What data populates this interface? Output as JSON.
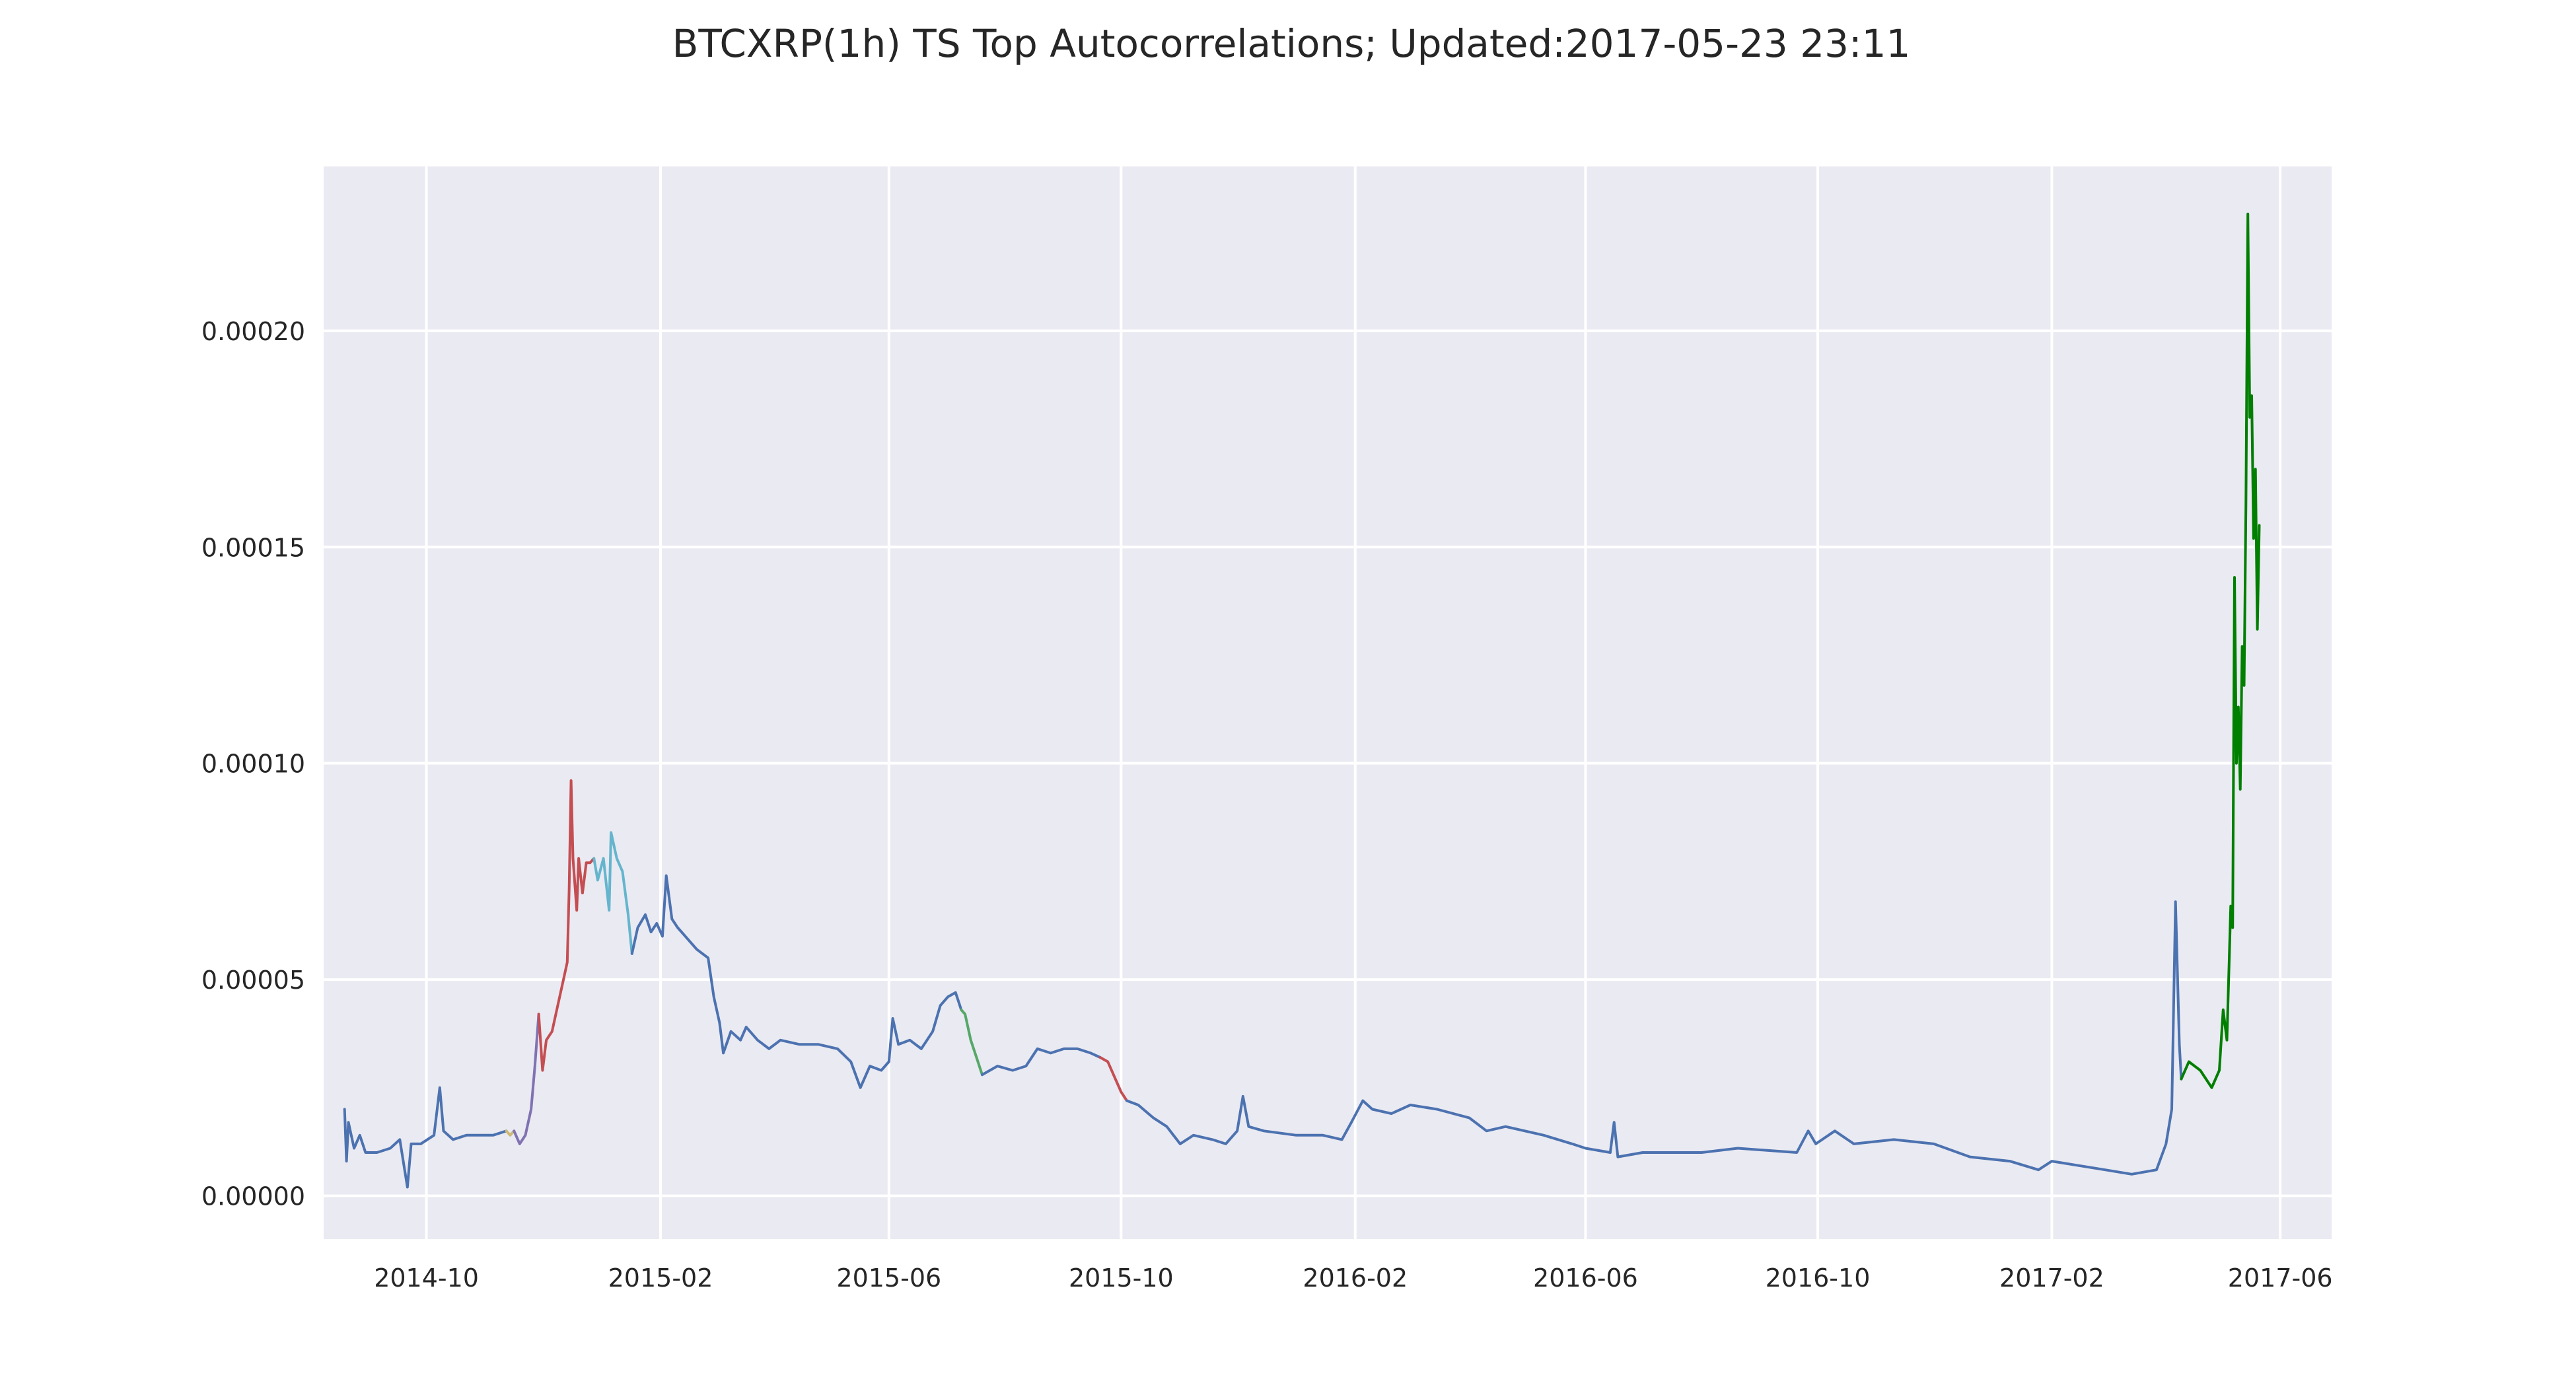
{
  "chart_data": {
    "type": "line",
    "title": "BTCXRP(1h) TS Top Autocorrelations;  Updated:2017-05-23 23:11",
    "xlabel": "",
    "ylabel": "",
    "x_axis": {
      "type": "date",
      "range": [
        "2014-08-08",
        "2017-06-28"
      ],
      "ticks": [
        "2014-10",
        "2015-02",
        "2015-06",
        "2015-10",
        "2016-02",
        "2016-06",
        "2016-10",
        "2017-02",
        "2017-06"
      ]
    },
    "y_axis": {
      "range": [
        -1e-05,
        0.000238
      ],
      "ticks": [
        "0.00000",
        "0.00005",
        "0.00010",
        "0.00015",
        "0.00020"
      ]
    },
    "grid": true,
    "legend": "none",
    "colors": {
      "background": "#EAEAF2",
      "grid": "#FFFFFF",
      "base": "#4C72B0",
      "red": "#C44E52",
      "cyan": "#64B5CD",
      "purple": "#8172B2",
      "green": "#55A868",
      "dark_green": "#007F00",
      "olive": "#CCB974"
    },
    "series": [
      {
        "color": "#4C72B0",
        "points": [
          [
            "2014-08-19",
            2e-05
          ],
          [
            "2014-08-20",
            8e-06
          ],
          [
            "2014-08-21",
            1.7e-05
          ],
          [
            "2014-08-24",
            1.1e-05
          ],
          [
            "2014-08-27",
            1.4e-05
          ],
          [
            "2014-08-30",
            1e-05
          ],
          [
            "2014-09-05",
            1e-05
          ],
          [
            "2014-09-12",
            1.1e-05
          ],
          [
            "2014-09-17",
            1.3e-05
          ],
          [
            "2014-09-21",
            2e-06
          ],
          [
            "2014-09-23",
            1.2e-05
          ],
          [
            "2014-09-28",
            1.2e-05
          ],
          [
            "2014-10-05",
            1.4e-05
          ],
          [
            "2014-10-08",
            2.5e-05
          ],
          [
            "2014-10-10",
            1.5e-05
          ],
          [
            "2014-10-15",
            1.3e-05
          ],
          [
            "2014-10-22",
            1.4e-05
          ],
          [
            "2014-10-29",
            1.4e-05
          ],
          [
            "2014-11-05",
            1.4e-05
          ],
          [
            "2014-11-12",
            1.5e-05
          ]
        ]
      },
      {
        "color": "#CCB974",
        "points": [
          [
            "2014-11-12",
            1.5e-05
          ],
          [
            "2014-11-14",
            1.4e-05
          ],
          [
            "2014-11-16",
            1.5e-05
          ]
        ]
      },
      {
        "color": "#8172B2",
        "points": [
          [
            "2014-11-16",
            1.5e-05
          ],
          [
            "2014-11-19",
            1.2e-05
          ],
          [
            "2014-11-22",
            1.4e-05
          ],
          [
            "2014-11-25",
            2e-05
          ],
          [
            "2014-11-27",
            3e-05
          ],
          [
            "2014-11-29",
            4.2e-05
          ]
        ]
      },
      {
        "color": "#C44E52",
        "points": [
          [
            "2014-11-29",
            4.2e-05
          ],
          [
            "2014-12-01",
            2.9e-05
          ],
          [
            "2014-12-03",
            3.6e-05
          ],
          [
            "2014-12-06",
            3.8e-05
          ],
          [
            "2014-12-09",
            4.4e-05
          ],
          [
            "2014-12-12",
            5e-05
          ],
          [
            "2014-12-14",
            5.4e-05
          ],
          [
            "2014-12-15",
            7.1e-05
          ],
          [
            "2014-12-16",
            9.6e-05
          ],
          [
            "2014-12-17",
            7.8e-05
          ],
          [
            "2014-12-19",
            6.6e-05
          ],
          [
            "2014-12-20",
            7.8e-05
          ],
          [
            "2014-12-22",
            7e-05
          ],
          [
            "2014-12-24",
            7.7e-05
          ],
          [
            "2014-12-26",
            7.7e-05
          ],
          [
            "2014-12-28",
            7.8e-05
          ]
        ]
      },
      {
        "color": "#64B5CD",
        "points": [
          [
            "2014-12-28",
            7.8e-05
          ],
          [
            "2014-12-30",
            7.3e-05
          ],
          [
            "2015-01-02",
            7.8e-05
          ],
          [
            "2015-01-05",
            6.6e-05
          ],
          [
            "2015-01-06",
            8.4e-05
          ],
          [
            "2015-01-09",
            7.8e-05
          ],
          [
            "2015-01-12",
            7.5e-05
          ],
          [
            "2015-01-15",
            6.5e-05
          ],
          [
            "2015-01-17",
            5.6e-05
          ]
        ]
      },
      {
        "color": "#4C72B0",
        "points": [
          [
            "2015-01-17",
            5.6e-05
          ],
          [
            "2015-01-20",
            6.2e-05
          ],
          [
            "2015-01-24",
            6.5e-05
          ],
          [
            "2015-01-27",
            6.1e-05
          ],
          [
            "2015-01-30",
            6.3e-05
          ],
          [
            "2015-02-02",
            6e-05
          ],
          [
            "2015-02-04",
            7.4e-05
          ],
          [
            "2015-02-07",
            6.4e-05
          ],
          [
            "2015-02-10",
            6.2e-05
          ],
          [
            "2015-02-14",
            6e-05
          ],
          [
            "2015-02-20",
            5.7e-05
          ],
          [
            "2015-02-26",
            5.5e-05
          ],
          [
            "2015-03-01",
            4.6e-05
          ],
          [
            "2015-03-04",
            4e-05
          ],
          [
            "2015-03-06",
            3.3e-05
          ],
          [
            "2015-03-10",
            3.8e-05
          ],
          [
            "2015-03-15",
            3.6e-05
          ],
          [
            "2015-03-18",
            3.9e-05
          ],
          [
            "2015-03-24",
            3.6e-05
          ],
          [
            "2015-03-30",
            3.4e-05
          ],
          [
            "2015-04-05",
            3.6e-05
          ],
          [
            "2015-04-15",
            3.5e-05
          ],
          [
            "2015-04-25",
            3.5e-05
          ],
          [
            "2015-05-05",
            3.4e-05
          ],
          [
            "2015-05-12",
            3.1e-05
          ],
          [
            "2015-05-17",
            2.5e-05
          ],
          [
            "2015-05-22",
            3e-05
          ],
          [
            "2015-05-28",
            2.9e-05
          ],
          [
            "2015-06-01",
            3.1e-05
          ],
          [
            "2015-06-03",
            4.1e-05
          ],
          [
            "2015-06-06",
            3.5e-05
          ],
          [
            "2015-06-12",
            3.6e-05
          ],
          [
            "2015-06-18",
            3.4e-05
          ],
          [
            "2015-06-24",
            3.8e-05
          ],
          [
            "2015-06-28",
            4.4e-05
          ],
          [
            "2015-07-02",
            4.6e-05
          ],
          [
            "2015-07-06",
            4.7e-05
          ],
          [
            "2015-07-09",
            4.3e-05
          ]
        ]
      },
      {
        "color": "#55A868",
        "points": [
          [
            "2015-07-09",
            4.3e-05
          ],
          [
            "2015-07-11",
            4.2e-05
          ],
          [
            "2015-07-14",
            3.6e-05
          ],
          [
            "2015-07-17",
            3.2e-05
          ],
          [
            "2015-07-20",
            2.8e-05
          ]
        ]
      },
      {
        "color": "#4C72B0",
        "points": [
          [
            "2015-07-20",
            2.8e-05
          ],
          [
            "2015-07-28",
            3e-05
          ],
          [
            "2015-08-05",
            2.9e-05
          ],
          [
            "2015-08-12",
            3e-05
          ],
          [
            "2015-08-18",
            3.4e-05
          ],
          [
            "2015-08-25",
            3.3e-05
          ],
          [
            "2015-09-01",
            3.4e-05
          ],
          [
            "2015-09-08",
            3.4e-05
          ],
          [
            "2015-09-15",
            3.3e-05
          ],
          [
            "2015-09-20",
            3.2e-05
          ]
        ]
      },
      {
        "color": "#C44E52",
        "points": [
          [
            "2015-09-20",
            3.2e-05
          ],
          [
            "2015-09-24",
            3.1e-05
          ],
          [
            "2015-09-28",
            2.7e-05
          ],
          [
            "2015-10-01",
            2.4e-05
          ],
          [
            "2015-10-04",
            2.2e-05
          ]
        ]
      },
      {
        "color": "#4C72B0",
        "points": [
          [
            "2015-10-04",
            2.2e-05
          ],
          [
            "2015-10-10",
            2.1e-05
          ],
          [
            "2015-10-18",
            1.8e-05
          ],
          [
            "2015-10-25",
            1.6e-05
          ],
          [
            "2015-11-01",
            1.2e-05
          ],
          [
            "2015-11-08",
            1.4e-05
          ],
          [
            "2015-11-18",
            1.3e-05
          ],
          [
            "2015-11-25",
            1.2e-05
          ],
          [
            "2015-12-01",
            1.5e-05
          ],
          [
            "2015-12-04",
            2.3e-05
          ],
          [
            "2015-12-07",
            1.6e-05
          ],
          [
            "2015-12-15",
            1.5e-05
          ],
          [
            "2016-01-01",
            1.4e-05
          ],
          [
            "2016-01-15",
            1.4e-05
          ],
          [
            "2016-01-25",
            1.3e-05
          ],
          [
            "2016-01-30",
            1.7e-05
          ],
          [
            "2016-02-05",
            2.2e-05
          ],
          [
            "2016-02-10",
            2e-05
          ],
          [
            "2016-02-20",
            1.9e-05
          ],
          [
            "2016-03-01",
            2.1e-05
          ],
          [
            "2016-03-15",
            2e-05
          ],
          [
            "2016-04-01",
            1.8e-05
          ],
          [
            "2016-04-10",
            1.5e-05
          ],
          [
            "2016-04-20",
            1.6e-05
          ],
          [
            "2016-05-10",
            1.4e-05
          ],
          [
            "2016-05-25",
            1.2e-05
          ],
          [
            "2016-06-01",
            1.1e-05
          ],
          [
            "2016-06-14",
            1e-05
          ],
          [
            "2016-06-16",
            1.7e-05
          ],
          [
            "2016-06-18",
            9e-06
          ],
          [
            "2016-07-01",
            1e-05
          ],
          [
            "2016-08-01",
            1e-05
          ],
          [
            "2016-08-20",
            1.1e-05
          ],
          [
            "2016-09-20",
            1e-05
          ],
          [
            "2016-09-26",
            1.5e-05
          ],
          [
            "2016-09-30",
            1.2e-05
          ],
          [
            "2016-10-10",
            1.5e-05
          ],
          [
            "2016-10-20",
            1.2e-05
          ],
          [
            "2016-11-10",
            1.3e-05
          ],
          [
            "2016-12-01",
            1.2e-05
          ],
          [
            "2016-12-20",
            9e-06
          ],
          [
            "2017-01-10",
            8e-06
          ],
          [
            "2017-01-25",
            6e-06
          ],
          [
            "2017-02-01",
            8e-06
          ],
          [
            "2017-02-15",
            7e-06
          ],
          [
            "2017-03-01",
            6e-06
          ],
          [
            "2017-03-15",
            5e-06
          ],
          [
            "2017-03-28",
            6e-06
          ],
          [
            "2017-04-02",
            1.2e-05
          ],
          [
            "2017-04-05",
            2e-05
          ],
          [
            "2017-04-07",
            6.8e-05
          ],
          [
            "2017-04-09",
            3.5e-05
          ],
          [
            "2017-04-10",
            2.7e-05
          ]
        ]
      },
      {
        "color": "#007F00",
        "points": [
          [
            "2017-04-10",
            2.7e-05
          ],
          [
            "2017-04-14",
            3.1e-05
          ],
          [
            "2017-04-20",
            2.9e-05
          ],
          [
            "2017-04-26",
            2.5e-05
          ],
          [
            "2017-04-30",
            2.9e-05
          ],
          [
            "2017-05-02",
            4.3e-05
          ],
          [
            "2017-05-04",
            3.6e-05
          ],
          [
            "2017-05-06",
            6.7e-05
          ],
          [
            "2017-05-07",
            6.2e-05
          ],
          [
            "2017-05-08",
            0.000143
          ],
          [
            "2017-05-09",
            0.0001
          ],
          [
            "2017-05-10",
            0.000113
          ],
          [
            "2017-05-11",
            9.4e-05
          ],
          [
            "2017-05-12",
            0.000127
          ],
          [
            "2017-05-13",
            0.000118
          ],
          [
            "2017-05-14",
            0.00016
          ],
          [
            "2017-05-15",
            0.000227
          ],
          [
            "2017-05-16",
            0.00018
          ],
          [
            "2017-05-17",
            0.000185
          ],
          [
            "2017-05-18",
            0.000152
          ],
          [
            "2017-05-19",
            0.000168
          ],
          [
            "2017-05-20",
            0.000131
          ],
          [
            "2017-05-21",
            0.000155
          ]
        ]
      }
    ]
  }
}
